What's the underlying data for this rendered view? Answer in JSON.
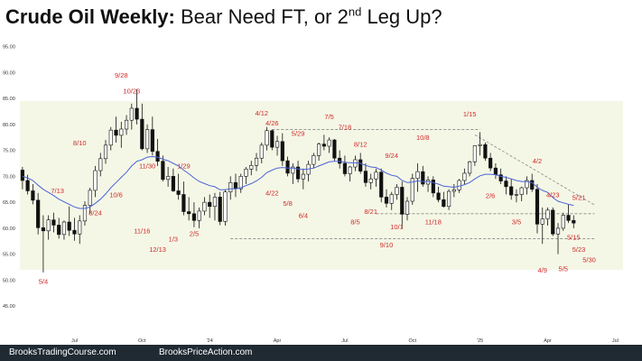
{
  "title": {
    "bold": "Crude Oil Weekly:",
    "rest_before": " Bear Need FT, or 2",
    "sup": "nd",
    "rest_after": " Leg Up?"
  },
  "footer": {
    "left": "BrooksTradingCourse.com",
    "right": "BrooksPriceAction.com"
  },
  "colors": {
    "bull_candle": "#ffffff",
    "bear_candle": "#111111",
    "ema": "#4a63d8",
    "labels": "#d02a2a",
    "range_band": "#f5f7e6",
    "axis_text": "#333333"
  },
  "chart_data": {
    "type": "candlestick",
    "timeframe": "weekly",
    "ylim": [
      40.0,
      97.0
    ],
    "y_ticks": [
      "95.00",
      "90.00",
      "85.00",
      "80.00",
      "75.00",
      "70.00",
      "65.00",
      "60.00",
      "55.00",
      "50.00",
      "45.00"
    ],
    "x_ticks": [
      {
        "label": "Jul",
        "week": 10
      },
      {
        "label": "Oct",
        "week": 23
      },
      {
        "label": "'24",
        "week": 36
      },
      {
        "label": "Apr",
        "week": 49
      },
      {
        "label": "Jul",
        "week": 62
      },
      {
        "label": "Oct",
        "week": 75
      },
      {
        "label": "'25",
        "week": 88
      },
      {
        "label": "Apr",
        "week": 101
      },
      {
        "label": "Jul",
        "week": 114
      }
    ],
    "range_band": {
      "from": 52.0,
      "to": 84.5
    },
    "dashed_lines": [
      {
        "from_week": 48,
        "to_week": 88,
        "y_from": 79.0,
        "y_to": 79.0
      },
      {
        "from_week": 87,
        "to_week": 110,
        "y_from": 78.0,
        "y_to": 64.5
      },
      {
        "from_week": 68,
        "to_week": 110,
        "y_from": 62.8,
        "y_to": 62.8
      },
      {
        "from_week": 40,
        "to_week": 110,
        "y_from": 58.0,
        "y_to": 58.0
      }
    ],
    "ohlc": [
      [
        71.2,
        71.8,
        67.5,
        69.2
      ],
      [
        69.2,
        70.3,
        66.5,
        67.2
      ],
      [
        67.2,
        68.5,
        64.6,
        65.4
      ],
      [
        65.4,
        66.8,
        58.8,
        60.1
      ],
      [
        60.1,
        62.5,
        51.5,
        59.5
      ],
      [
        59.5,
        62.5,
        57.8,
        61.6
      ],
      [
        61.6,
        63.0,
        59.2,
        60.6
      ],
      [
        60.6,
        62.0,
        58.0,
        58.8
      ],
      [
        58.8,
        61.5,
        57.8,
        61.2
      ],
      [
        61.2,
        64.2,
        58.5,
        59.6
      ],
      [
        59.6,
        62.0,
        57.6,
        58.9
      ],
      [
        58.9,
        62.5,
        57.0,
        61.4
      ],
      [
        61.4,
        65.2,
        60.5,
        64.4
      ],
      [
        64.4,
        67.8,
        62.8,
        67.3
      ],
      [
        67.3,
        72.0,
        66.0,
        71.1
      ],
      [
        71.1,
        74.5,
        70.0,
        73.4
      ],
      [
        73.4,
        77.0,
        72.4,
        76.0
      ],
      [
        76.0,
        79.5,
        75.0,
        78.9
      ],
      [
        78.9,
        81.5,
        76.5,
        77.9
      ],
      [
        77.9,
        80.5,
        75.5,
        79.1
      ],
      [
        79.1,
        81.8,
        78.0,
        80.8
      ],
      [
        80.8,
        84.0,
        79.0,
        83.1
      ],
      [
        83.1,
        86.8,
        80.0,
        81.0
      ],
      [
        81.0,
        84.0,
        75.0,
        75.3
      ],
      [
        75.3,
        80.0,
        74.5,
        79.0
      ],
      [
        79.0,
        81.5,
        74.0,
        74.8
      ],
      [
        74.8,
        77.2,
        72.0,
        72.9
      ],
      [
        72.9,
        74.0,
        69.0,
        69.4
      ],
      [
        69.4,
        71.8,
        68.0,
        70.0
      ],
      [
        70.0,
        71.5,
        67.0,
        67.2
      ],
      [
        67.2,
        70.5,
        65.5,
        66.5
      ],
      [
        66.5,
        69.0,
        62.5,
        63.2
      ],
      [
        63.2,
        66.0,
        61.5,
        62.8
      ],
      [
        62.8,
        65.0,
        60.2,
        61.5
      ],
      [
        61.5,
        64.0,
        60.0,
        63.3
      ],
      [
        63.3,
        66.0,
        62.5,
        65.0
      ],
      [
        65.0,
        66.5,
        62.0,
        64.2
      ],
      [
        64.2,
        66.8,
        61.5,
        66.0
      ],
      [
        66.0,
        67.0,
        60.6,
        61.3
      ],
      [
        61.3,
        67.5,
        60.5,
        67.0
      ],
      [
        67.0,
        70.0,
        65.5,
        68.8
      ],
      [
        68.8,
        70.5,
        66.0,
        67.6
      ],
      [
        67.6,
        70.5,
        66.8,
        70.0
      ],
      [
        70.0,
        71.8,
        68.5,
        71.4
      ],
      [
        71.4,
        73.0,
        70.2,
        72.1
      ],
      [
        72.1,
        74.5,
        71.0,
        73.5
      ],
      [
        73.5,
        76.5,
        72.5,
        76.0
      ],
      [
        76.0,
        79.5,
        75.0,
        78.8
      ],
      [
        78.8,
        79.0,
        75.0,
        75.6
      ],
      [
        75.6,
        77.8,
        74.0,
        76.7
      ],
      [
        76.7,
        78.3,
        72.0,
        73.0
      ],
      [
        73.0,
        73.8,
        70.0,
        70.6
      ],
      [
        70.6,
        72.5,
        68.5,
        71.8
      ],
      [
        71.8,
        73.0,
        68.8,
        69.5
      ],
      [
        69.5,
        71.5,
        67.5,
        70.4
      ],
      [
        70.4,
        73.0,
        69.0,
        72.3
      ],
      [
        72.3,
        74.5,
        71.5,
        74.0
      ],
      [
        74.0,
        76.5,
        73.0,
        76.2
      ],
      [
        76.2,
        78.0,
        75.0,
        75.8
      ],
      [
        75.8,
        77.5,
        74.5,
        77.0
      ],
      [
        77.0,
        77.2,
        73.0,
        73.5
      ],
      [
        73.5,
        75.0,
        71.5,
        72.5
      ],
      [
        72.5,
        74.0,
        70.0,
        70.5
      ],
      [
        70.5,
        72.0,
        69.0,
        71.8
      ],
      [
        71.8,
        74.0,
        71.0,
        73.2
      ],
      [
        73.2,
        74.5,
        70.5,
        71.0
      ],
      [
        71.0,
        72.5,
        68.0,
        68.8
      ],
      [
        68.8,
        70.5,
        67.5,
        69.5
      ],
      [
        69.5,
        71.5,
        68.0,
        70.8
      ],
      [
        70.8,
        71.5,
        65.0,
        66.0
      ],
      [
        66.0,
        67.5,
        64.0,
        64.8
      ],
      [
        64.8,
        67.0,
        63.5,
        66.5
      ],
      [
        66.5,
        68.5,
        65.5,
        67.9
      ],
      [
        67.9,
        69.0,
        60.0,
        62.7
      ],
      [
        62.7,
        66.0,
        61.5,
        65.2
      ],
      [
        65.2,
        70.5,
        64.5,
        69.6
      ],
      [
        69.6,
        72.5,
        67.0,
        70.9
      ],
      [
        70.9,
        72.0,
        68.0,
        68.5
      ],
      [
        68.5,
        70.0,
        67.0,
        69.3
      ],
      [
        69.3,
        70.0,
        66.0,
        66.8
      ],
      [
        66.8,
        68.0,
        65.0,
        65.5
      ],
      [
        65.5,
        67.0,
        64.0,
        64.2
      ],
      [
        64.2,
        67.5,
        63.5,
        67.1
      ],
      [
        67.1,
        68.5,
        66.0,
        67.4
      ],
      [
        67.4,
        69.5,
        66.8,
        69.2
      ],
      [
        69.2,
        71.5,
        68.5,
        70.6
      ],
      [
        70.6,
        73.0,
        70.0,
        72.8
      ],
      [
        72.8,
        76.0,
        72.0,
        75.9
      ],
      [
        75.9,
        78.5,
        74.0,
        76.1
      ],
      [
        76.1,
        76.5,
        73.0,
        73.5
      ],
      [
        73.5,
        74.5,
        71.0,
        71.6
      ],
      [
        71.6,
        72.5,
        69.5,
        70.3
      ],
      [
        70.3,
        71.5,
        68.5,
        69.1
      ],
      [
        69.1,
        70.0,
        66.5,
        68.0
      ],
      [
        68.0,
        69.5,
        65.5,
        66.4
      ],
      [
        66.4,
        67.5,
        65.0,
        66.5
      ],
      [
        66.5,
        68.0,
        65.2,
        67.8
      ],
      [
        67.8,
        70.0,
        66.5,
        69.2
      ],
      [
        69.2,
        70.5,
        67.0,
        67.5
      ],
      [
        67.5,
        68.5,
        59.0,
        60.8
      ],
      [
        60.8,
        64.0,
        57.0,
        61.8
      ],
      [
        61.8,
        64.0,
        60.5,
        63.5
      ],
      [
        63.5,
        64.0,
        58.5,
        58.9
      ],
      [
        58.9,
        61.0,
        55.0,
        60.0
      ],
      [
        60.0,
        63.0,
        59.5,
        62.5
      ],
      [
        62.5,
        64.5,
        61.0,
        61.5
      ],
      [
        61.5,
        62.5,
        60.0,
        61.0
      ]
    ],
    "ema_20": [
      70.0,
      69.7,
      69.2,
      68.3,
      67.5,
      66.9,
      66.3,
      65.6,
      65.1,
      64.6,
      64.1,
      63.8,
      63.8,
      64.1,
      64.8,
      65.6,
      66.6,
      67.8,
      68.8,
      69.8,
      70.8,
      72.0,
      72.9,
      73.2,
      73.7,
      73.8,
      73.7,
      73.3,
      73.0,
      72.5,
      72.0,
      71.2,
      70.5,
      69.7,
      69.0,
      68.6,
      68.2,
      68.0,
      67.4,
      67.4,
      67.6,
      67.6,
      67.8,
      68.2,
      68.6,
      69.1,
      69.8,
      70.7,
      71.2,
      71.6,
      71.7,
      71.6,
      71.6,
      71.4,
      71.3,
      71.4,
      71.6,
      72.0,
      72.4,
      72.8,
      72.9,
      72.9,
      72.7,
      72.6,
      72.6,
      72.5,
      72.1,
      71.8,
      71.7,
      71.2,
      70.6,
      70.2,
      70.0,
      69.2,
      68.8,
      68.9,
      69.1,
      69.0,
      69.0,
      68.8,
      68.5,
      68.1,
      68.0,
      67.9,
      68.1,
      68.4,
      68.8,
      69.5,
      70.1,
      70.4,
      70.4,
      70.3,
      70.0,
      69.8,
      69.5,
      69.2,
      69.0,
      69.0,
      68.8,
      67.9,
      67.3,
      66.9,
      65.9,
      65.2,
      64.9,
      64.6,
      64.4
    ],
    "annotations": [
      {
        "text": "5/4",
        "week": 4,
        "price": 49.3,
        "anchor": "middle"
      },
      {
        "text": "7/13",
        "week": 8,
        "price": 66.8,
        "anchor": "end"
      },
      {
        "text": "8/10",
        "week": 11,
        "price": 76.0,
        "anchor": "middle"
      },
      {
        "text": "8/24",
        "week": 14,
        "price": 62.5,
        "anchor": "middle"
      },
      {
        "text": "9/28",
        "week": 19,
        "price": 89.0,
        "anchor": "middle"
      },
      {
        "text": "10/23",
        "week": 21,
        "price": 86.0,
        "anchor": "middle"
      },
      {
        "text": "10/6",
        "week": 18,
        "price": 66.0,
        "anchor": "middle"
      },
      {
        "text": "11/30",
        "week": 24,
        "price": 71.5,
        "anchor": "middle"
      },
      {
        "text": "11/16",
        "week": 23,
        "price": 59.0,
        "anchor": "middle"
      },
      {
        "text": "12/13",
        "week": 26,
        "price": 55.5,
        "anchor": "middle"
      },
      {
        "text": "1/3",
        "week": 29,
        "price": 57.5,
        "anchor": "middle"
      },
      {
        "text": "1/29",
        "week": 31,
        "price": 71.5,
        "anchor": "middle"
      },
      {
        "text": "2/5",
        "week": 33,
        "price": 58.5,
        "anchor": "middle"
      },
      {
        "text": "4/12",
        "week": 46,
        "price": 81.7,
        "anchor": "middle"
      },
      {
        "text": "4/26",
        "week": 48,
        "price": 79.8,
        "anchor": "middle"
      },
      {
        "text": "5/29",
        "week": 53,
        "price": 77.8,
        "anchor": "middle"
      },
      {
        "text": "4/22",
        "week": 48,
        "price": 66.3,
        "anchor": "middle"
      },
      {
        "text": "5/8",
        "week": 51,
        "price": 64.3,
        "anchor": "middle"
      },
      {
        "text": "6/4",
        "week": 54,
        "price": 62.0,
        "anchor": "middle"
      },
      {
        "text": "7/5",
        "week": 59,
        "price": 81.0,
        "anchor": "middle"
      },
      {
        "text": "7/18",
        "week": 62,
        "price": 79.0,
        "anchor": "middle"
      },
      {
        "text": "8/12",
        "week": 65,
        "price": 75.7,
        "anchor": "middle"
      },
      {
        "text": "10/8",
        "week": 77,
        "price": 77.0,
        "anchor": "middle"
      },
      {
        "text": "9/24",
        "week": 71,
        "price": 73.5,
        "anchor": "middle"
      },
      {
        "text": "8/21",
        "week": 67,
        "price": 62.8,
        "anchor": "middle"
      },
      {
        "text": "8/5",
        "week": 64,
        "price": 60.8,
        "anchor": "middle"
      },
      {
        "text": "10/1",
        "week": 72,
        "price": 59.8,
        "anchor": "middle"
      },
      {
        "text": "11/18",
        "week": 79,
        "price": 60.8,
        "anchor": "middle"
      },
      {
        "text": "9/10",
        "week": 70,
        "price": 56.3,
        "anchor": "middle"
      },
      {
        "text": "1/15",
        "week": 86,
        "price": 81.5,
        "anchor": "middle"
      },
      {
        "text": "2/6",
        "week": 90,
        "price": 65.8,
        "anchor": "middle"
      },
      {
        "text": "3/5",
        "week": 95,
        "price": 60.8,
        "anchor": "middle"
      },
      {
        "text": "4/2",
        "week": 99,
        "price": 72.5,
        "anchor": "middle"
      },
      {
        "text": "4/23",
        "week": 102,
        "price": 66.0,
        "anchor": "middle"
      },
      {
        "text": "5/21",
        "week": 107,
        "price": 65.5,
        "anchor": "middle"
      },
      {
        "text": "5/15",
        "week": 106,
        "price": 57.8,
        "anchor": "middle"
      },
      {
        "text": "5/23",
        "week": 107,
        "price": 55.5,
        "anchor": "middle"
      },
      {
        "text": "5/30",
        "week": 109,
        "price": 53.5,
        "anchor": "middle"
      },
      {
        "text": "4/9",
        "week": 100,
        "price": 51.5,
        "anchor": "middle"
      },
      {
        "text": "5/5",
        "week": 104,
        "price": 51.7,
        "anchor": "middle"
      }
    ]
  }
}
